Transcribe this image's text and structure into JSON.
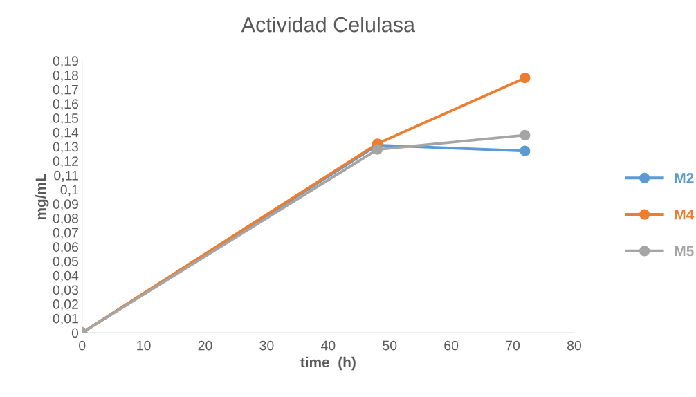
{
  "chart_data": {
    "type": "line",
    "title": "Actividad Celulasa",
    "xlabel": "time  (h)",
    "ylabel": "mg/mL",
    "x": [
      0,
      48,
      72
    ],
    "series": [
      {
        "name": "M2",
        "color": "#5b9bd5",
        "values": [
          0,
          0.131,
          0.127
        ]
      },
      {
        "name": "M4",
        "color": "#ed7d31",
        "values": [
          0,
          0.132,
          0.178
        ]
      },
      {
        "name": "M5",
        "color": "#a5a5a5",
        "values": [
          0,
          0.128,
          0.138
        ]
      }
    ],
    "xlim": [
      0,
      80
    ],
    "xticks": [
      0,
      10,
      20,
      30,
      40,
      50,
      60,
      70,
      80
    ],
    "ylim": [
      0,
      0.19
    ],
    "yticks": [
      0,
      {
        "value": 0.01,
        "label": "0,01"
      },
      {
        "value": 0.02,
        "label": "0,02"
      },
      {
        "value": 0.03,
        "label": "0,03"
      },
      {
        "value": 0.04,
        "label": "0,04"
      },
      {
        "value": 0.05,
        "label": "0,05"
      },
      {
        "value": 0.06,
        "label": "0,06"
      },
      {
        "value": 0.07,
        "label": "0,07"
      },
      {
        "value": 0.08,
        "label": "0,08"
      },
      {
        "value": 0.09,
        "label": "0,09"
      },
      {
        "value": 0.1,
        "label": "0,1"
      },
      {
        "value": 0.11,
        "label": "0,11"
      },
      {
        "value": 0.12,
        "label": "0,12"
      },
      {
        "value": 0.13,
        "label": "0,13"
      },
      {
        "value": 0.14,
        "label": "0,14"
      },
      {
        "value": 0.15,
        "label": "0,15"
      },
      {
        "value": 0.16,
        "label": "0,16"
      },
      {
        "value": 0.17,
        "label": "0,17"
      },
      {
        "value": 0.18,
        "label": "0,18"
      },
      {
        "value": 0.19,
        "label": "0,19"
      }
    ],
    "grid": false,
    "legend": "right",
    "marker": "circle",
    "line_style": "solid"
  }
}
